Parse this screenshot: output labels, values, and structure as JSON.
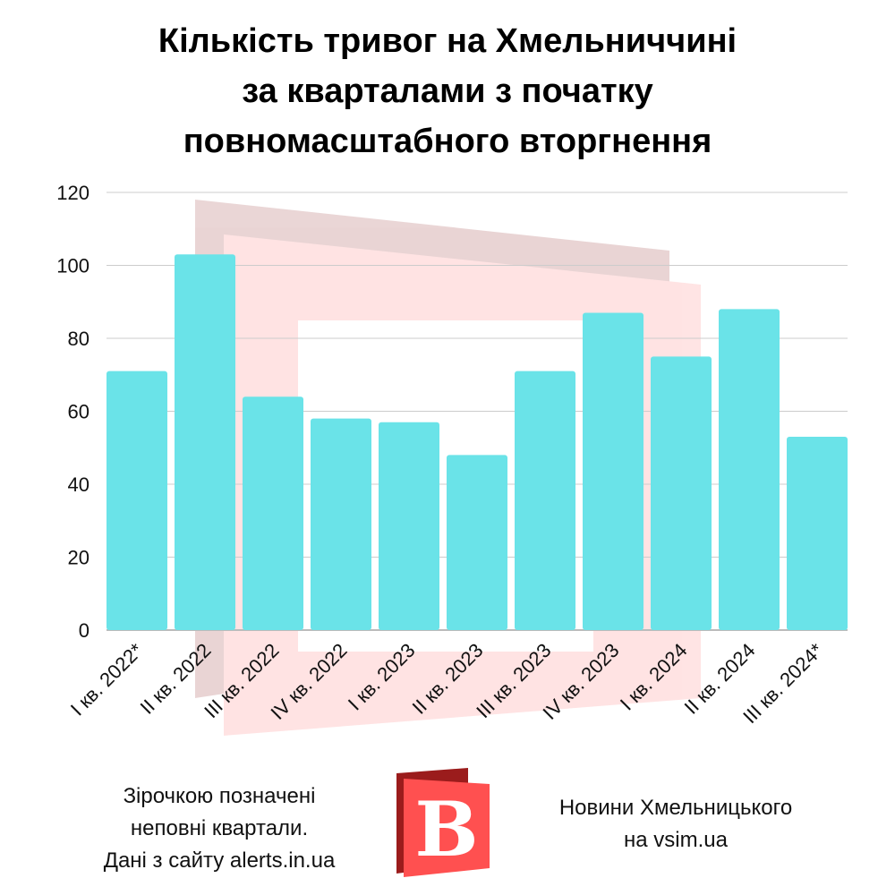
{
  "title_lines": [
    "Кількість тривог на Хмельниччині",
    "за кварталами з початку",
    "повномасштабного вторгнення"
  ],
  "chart_data": {
    "type": "bar",
    "title": "Кількість тривог на Хмельниччині за кварталами з початку повномасштабного вторгнення",
    "categories": [
      "I кв. 2022*",
      "II кв. 2022",
      "III кв. 2022",
      "IV кв. 2022",
      "I кв. 2023",
      "II кв. 2023",
      "III кв. 2023",
      "IV кв. 2023",
      "I кв. 2024",
      "II кв. 2024",
      "III кв. 2024*"
    ],
    "values": [
      71,
      103,
      64,
      58,
      57,
      48,
      71,
      87,
      75,
      88,
      53
    ],
    "xlabel": "",
    "ylabel": "",
    "ylim": [
      0,
      120
    ],
    "yticks": [
      0,
      20,
      40,
      60,
      80,
      100,
      120
    ],
    "grid": true,
    "bar_color": "#6ae3e8"
  },
  "footnote_lines": [
    "Зірочкою позначені",
    "неповні квартали.",
    "Дані з сайту alerts.in.ua"
  ],
  "source_lines": [
    "Новини Хмельницького",
    "на vsim.ua"
  ],
  "logo_letter": "B",
  "colors": {
    "logo_red": "#ff5050",
    "logo_dark": "#9b1c1c"
  }
}
